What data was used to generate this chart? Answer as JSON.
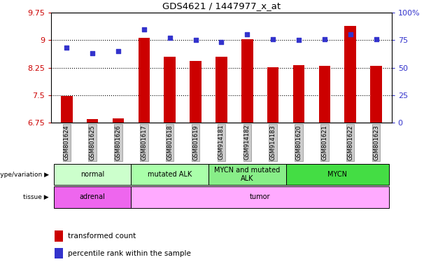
{
  "title": "GDS4621 / 1447977_x_at",
  "samples": [
    "GSM801624",
    "GSM801625",
    "GSM801626",
    "GSM801617",
    "GSM801618",
    "GSM801619",
    "GSM914181",
    "GSM914182",
    "GSM914183",
    "GSM801620",
    "GSM801621",
    "GSM801622",
    "GSM801623"
  ],
  "bar_values": [
    7.48,
    6.84,
    6.86,
    9.06,
    8.55,
    8.44,
    8.55,
    9.03,
    8.26,
    8.32,
    8.3,
    9.38,
    8.3
  ],
  "dot_values": [
    68,
    63,
    65,
    85,
    77,
    75,
    73,
    80,
    76,
    75,
    76,
    80,
    76
  ],
  "ylim": [
    6.75,
    9.75
  ],
  "yticks": [
    6.75,
    7.5,
    8.25,
    9.0,
    9.75
  ],
  "ytick_labels": [
    "6.75",
    "7.5",
    "8.25",
    "9",
    "9.75"
  ],
  "y2lim": [
    0,
    100
  ],
  "y2ticks": [
    0,
    25,
    50,
    75,
    100
  ],
  "y2tick_labels": [
    "0",
    "25",
    "50",
    "75",
    "100%"
  ],
  "bar_color": "#cc0000",
  "dot_color": "#3333cc",
  "genotype_groups": [
    {
      "label": "normal",
      "start": 0,
      "end": 3,
      "color": "#ccffcc"
    },
    {
      "label": "mutated ALK",
      "start": 3,
      "end": 6,
      "color": "#aaffaa"
    },
    {
      "label": "MYCN and mutated\nALK",
      "start": 6,
      "end": 9,
      "color": "#88ee88"
    },
    {
      "label": "MYCN",
      "start": 9,
      "end": 13,
      "color": "#44dd44"
    }
  ],
  "tissue_groups": [
    {
      "label": "adrenal",
      "start": 0,
      "end": 3,
      "color": "#ee66ee"
    },
    {
      "label": "tumor",
      "start": 3,
      "end": 13,
      "color": "#ffaaff"
    }
  ],
  "legend_bar_label": "transformed count",
  "legend_dot_label": "percentile rank within the sample",
  "bar_color_legend": "#cc0000",
  "dot_color_legend": "#3333cc",
  "ylabel_color": "#cc0000",
  "y2label_color": "#3333cc",
  "grid_color": "#000000",
  "bar_width": 0.45
}
